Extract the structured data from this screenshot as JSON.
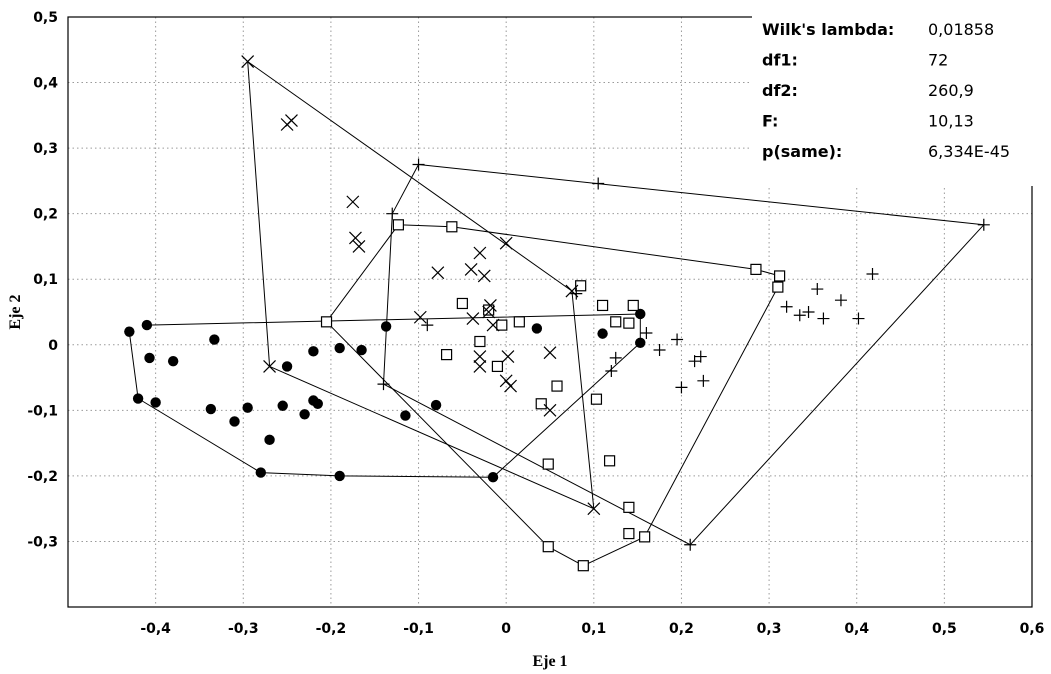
{
  "chart_data": {
    "type": "scatter",
    "xlabel": "Eje 1",
    "ylabel": "Eje 2",
    "xlim": [
      -0.5,
      0.6
    ],
    "ylim": [
      -0.4,
      0.5
    ],
    "xticks": [
      "-0,4",
      "-0,3",
      "-0,2",
      "-0,1",
      "0",
      "0,1",
      "0,2",
      "0,3",
      "0,4",
      "0,5",
      "0,6"
    ],
    "xtick_values": [
      -0.4,
      -0.3,
      -0.2,
      -0.1,
      0,
      0.1,
      0.2,
      0.3,
      0.4,
      0.5,
      0.6
    ],
    "yticks": [
      "-0,3",
      "-0,2",
      "-0,1",
      "0",
      "0,1",
      "0,2",
      "0,3",
      "0,4",
      "0,5"
    ],
    "ytick_values": [
      -0.3,
      -0.2,
      -0.1,
      0,
      0.1,
      0.2,
      0.3,
      0.4,
      0.5
    ],
    "grid": true,
    "stats": [
      {
        "label": "Wilk's lambda:",
        "value": "0,01858"
      },
      {
        "label": "df1:",
        "value": "72"
      },
      {
        "label": "df2:",
        "value": "260,9"
      },
      {
        "label": "F:",
        "value": "10,13"
      },
      {
        "label": "p(same):",
        "value": "6,334E-45"
      }
    ],
    "series": [
      {
        "marker": "filled-circle",
        "points": [
          [
            -0.43,
            0.02
          ],
          [
            -0.41,
            0.03
          ],
          [
            -0.42,
            -0.082
          ],
          [
            -0.407,
            -0.02
          ],
          [
            -0.4,
            -0.088
          ],
          [
            -0.38,
            -0.025
          ],
          [
            -0.333,
            0.008
          ],
          [
            -0.337,
            -0.098
          ],
          [
            -0.31,
            -0.117
          ],
          [
            -0.295,
            -0.096
          ],
          [
            -0.28,
            -0.195
          ],
          [
            -0.27,
            -0.145
          ],
          [
            -0.255,
            -0.093
          ],
          [
            -0.25,
            -0.033
          ],
          [
            -0.23,
            -0.106
          ],
          [
            -0.22,
            -0.085
          ],
          [
            -0.22,
            -0.01
          ],
          [
            -0.215,
            -0.09
          ],
          [
            -0.19,
            -0.005
          ],
          [
            -0.19,
            -0.2
          ],
          [
            -0.165,
            -0.008
          ],
          [
            -0.137,
            0.028
          ],
          [
            -0.115,
            -0.108
          ],
          [
            -0.08,
            -0.092
          ],
          [
            -0.015,
            -0.202
          ],
          [
            0.035,
            0.025
          ],
          [
            0.11,
            0.017
          ],
          [
            0.153,
            0.047
          ],
          [
            0.153,
            0.003
          ]
        ],
        "hull": [
          [
            -0.41,
            0.03
          ],
          [
            0.153,
            0.047
          ],
          [
            0.153,
            0.003
          ],
          [
            -0.015,
            -0.202
          ],
          [
            -0.19,
            -0.2
          ],
          [
            -0.28,
            -0.195
          ],
          [
            -0.42,
            -0.082
          ],
          [
            -0.43,
            0.02
          ]
        ]
      },
      {
        "marker": "open-square",
        "points": [
          [
            -0.205,
            0.035
          ],
          [
            -0.123,
            0.183
          ],
          [
            -0.062,
            0.18
          ],
          [
            -0.068,
            -0.015
          ],
          [
            -0.05,
            0.063
          ],
          [
            -0.03,
            0.005
          ],
          [
            -0.02,
            0.053
          ],
          [
            -0.01,
            -0.033
          ],
          [
            -0.005,
            0.03
          ],
          [
            0.015,
            0.035
          ],
          [
            0.04,
            -0.09
          ],
          [
            0.048,
            -0.182
          ],
          [
            0.048,
            -0.308
          ],
          [
            0.058,
            -0.063
          ],
          [
            0.085,
            0.09
          ],
          [
            0.088,
            -0.337
          ],
          [
            0.103,
            -0.083
          ],
          [
            0.11,
            0.06
          ],
          [
            0.118,
            -0.177
          ],
          [
            0.125,
            0.035
          ],
          [
            0.14,
            -0.288
          ],
          [
            0.14,
            -0.248
          ],
          [
            0.14,
            0.033
          ],
          [
            0.145,
            0.06
          ],
          [
            0.158,
            -0.293
          ],
          [
            0.285,
            0.115
          ],
          [
            0.31,
            0.088
          ],
          [
            0.312,
            0.105
          ]
        ],
        "hull": [
          [
            -0.205,
            0.035
          ],
          [
            -0.123,
            0.183
          ],
          [
            -0.062,
            0.18
          ],
          [
            0.285,
            0.115
          ],
          [
            0.312,
            0.105
          ],
          [
            0.31,
            0.088
          ],
          [
            0.158,
            -0.293
          ],
          [
            0.088,
            -0.337
          ],
          [
            0.048,
            -0.308
          ],
          [
            -0.205,
            0.035
          ]
        ]
      },
      {
        "marker": "x",
        "points": [
          [
            -0.295,
            0.432
          ],
          [
            -0.25,
            0.336
          ],
          [
            -0.245,
            0.342
          ],
          [
            -0.27,
            -0.033
          ],
          [
            -0.175,
            0.218
          ],
          [
            -0.172,
            0.163
          ],
          [
            -0.168,
            0.15
          ],
          [
            -0.098,
            0.042
          ],
          [
            -0.078,
            0.11
          ],
          [
            -0.04,
            0.115
          ],
          [
            -0.038,
            0.04
          ],
          [
            -0.03,
            0.14
          ],
          [
            -0.03,
            -0.033
          ],
          [
            -0.03,
            -0.018
          ],
          [
            -0.025,
            0.105
          ],
          [
            -0.02,
            0.05
          ],
          [
            -0.018,
            0.06
          ],
          [
            -0.015,
            0.03
          ],
          [
            0,
            0.155
          ],
          [
            0,
            -0.055
          ],
          [
            0.002,
            -0.018
          ],
          [
            0.005,
            -0.063
          ],
          [
            0.05,
            -0.012
          ],
          [
            0.05,
            -0.1
          ],
          [
            0.075,
            0.082
          ],
          [
            0.1,
            -0.25
          ]
        ],
        "hull": [
          [
            -0.295,
            0.432
          ],
          [
            0.075,
            0.082
          ],
          [
            0.1,
            -0.25
          ],
          [
            -0.27,
            -0.033
          ],
          [
            -0.295,
            0.432
          ]
        ]
      },
      {
        "marker": "plus",
        "points": [
          [
            -0.1,
            0.275
          ],
          [
            0.105,
            0.246
          ],
          [
            0.545,
            0.183
          ],
          [
            -0.13,
            0.2
          ],
          [
            -0.14,
            -0.06
          ],
          [
            -0.09,
            0.03
          ],
          [
            0.08,
            0.078
          ],
          [
            0.12,
            -0.04
          ],
          [
            0.125,
            -0.02
          ],
          [
            0.16,
            0.018
          ],
          [
            0.175,
            -0.008
          ],
          [
            0.195,
            0.008
          ],
          [
            0.2,
            -0.065
          ],
          [
            0.21,
            -0.305
          ],
          [
            0.215,
            -0.025
          ],
          [
            0.222,
            -0.018
          ],
          [
            0.225,
            -0.055
          ],
          [
            0.32,
            0.058
          ],
          [
            0.335,
            0.045
          ],
          [
            0.345,
            0.05
          ],
          [
            0.355,
            0.085
          ],
          [
            0.362,
            0.04
          ],
          [
            0.382,
            0.068
          ],
          [
            0.402,
            0.04
          ],
          [
            0.418,
            0.108
          ]
        ],
        "hull": [
          [
            -0.1,
            0.275
          ],
          [
            0.545,
            0.183
          ],
          [
            0.21,
            -0.305
          ],
          [
            -0.14,
            -0.06
          ],
          [
            -0.13,
            0.2
          ],
          [
            -0.1,
            0.275
          ]
        ]
      }
    ]
  }
}
